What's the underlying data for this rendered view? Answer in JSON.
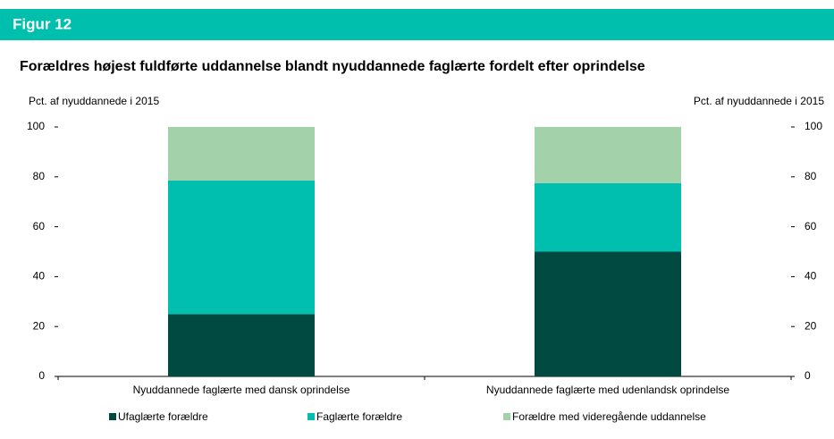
{
  "figure_label": "Figur 12",
  "chart_data": {
    "type": "stacked_bar",
    "title": "Forældres højest fuldførte uddannelse blandt nyuddannede faglærte fordelt efter oprindelse",
    "ylabel": "Pct. af nyuddannede i 2015",
    "y2label": "Pct. af nyuddannede i 2015",
    "categories": [
      "Nyuddannede faglærte med dansk oprindelse",
      "Nyuddannede faglærte med udenlandsk oprindelse"
    ],
    "series": [
      {
        "name": "Ufaglærte forældre",
        "color": "#004a42",
        "values": [
          25,
          50
        ]
      },
      {
        "name": "Faglærte forældre",
        "color": "#00bfae",
        "values": [
          53.5,
          27.5
        ]
      },
      {
        "name": "Forældre med videregående uddannelse",
        "color": "#a3d1a9",
        "values": [
          21.5,
          22.5
        ]
      }
    ],
    "ylim": [
      0,
      100
    ],
    "yticks": [
      0,
      20,
      40,
      60,
      80,
      100
    ],
    "y2lim": [
      0,
      100
    ],
    "y2ticks": [
      0,
      20,
      40,
      60,
      80,
      100
    ],
    "grid": false
  }
}
